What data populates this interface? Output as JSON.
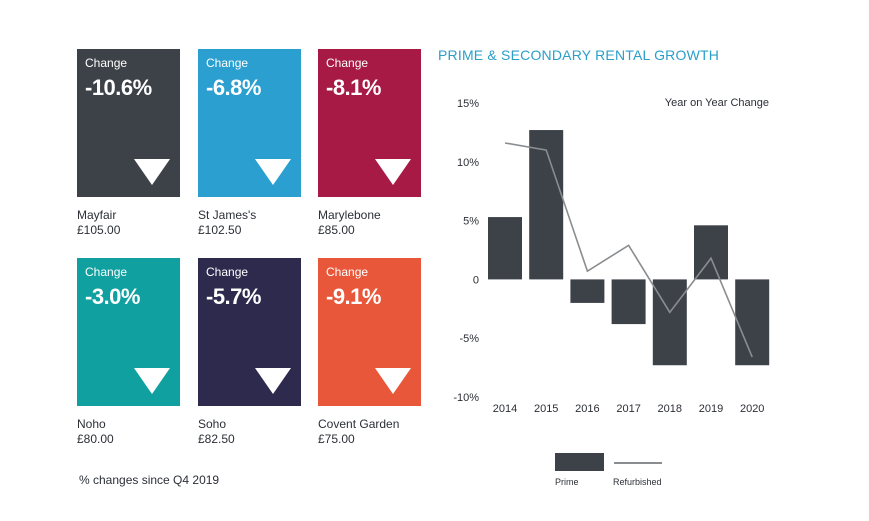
{
  "tiles": [
    {
      "label": "Change",
      "value": "-10.6%",
      "name": "Mayfair",
      "price": "£105.00",
      "color": "#3d4249"
    },
    {
      "label": "Change",
      "value": "-6.8%",
      "name": "St James's",
      "price": "£102.50",
      "color": "#2a9fd0"
    },
    {
      "label": "Change",
      "value": "-8.1%",
      "name": "Marylebone",
      "price": "£85.00",
      "color": "#a61a45"
    },
    {
      "label": "Change",
      "value": "-3.0%",
      "name": "Noho",
      "price": "£80.00",
      "color": "#11a0a0"
    },
    {
      "label": "Change",
      "value": "-5.7%",
      "name": "Soho",
      "price": "£82.50",
      "color": "#2e2a4e"
    },
    {
      "label": "Change",
      "value": "-9.1%",
      "name": "Covent Garden",
      "price": "£75.00",
      "color": "#e9573a"
    }
  ],
  "footnote": "% changes since Q4 2019",
  "chart_data": {
    "type": "bar",
    "title": "PRIME & SECONDARY RENTAL GROWTH",
    "subtitle": "Year on Year Change",
    "categories": [
      "2014",
      "2015",
      "2016",
      "2017",
      "2018",
      "2019",
      "2020"
    ],
    "series": [
      {
        "name": "Prime",
        "type": "bar",
        "color": "#3d4249",
        "values": [
          5.3,
          12.7,
          -2.0,
          -3.8,
          -7.3,
          4.6,
          -7.3
        ]
      },
      {
        "name": "Refurbished",
        "type": "line",
        "color": "#8a8d90",
        "values": [
          11.6,
          11.0,
          0.7,
          2.9,
          -2.8,
          1.8,
          -6.6
        ]
      }
    ],
    "ylim": [
      -10,
      15
    ],
    "yticks": [
      15,
      10,
      5,
      0,
      -5,
      -10
    ],
    "ytick_labels": [
      "15%",
      "10%",
      "5%",
      "0",
      "-5%",
      "-10%"
    ],
    "legend_position": "bottom"
  }
}
